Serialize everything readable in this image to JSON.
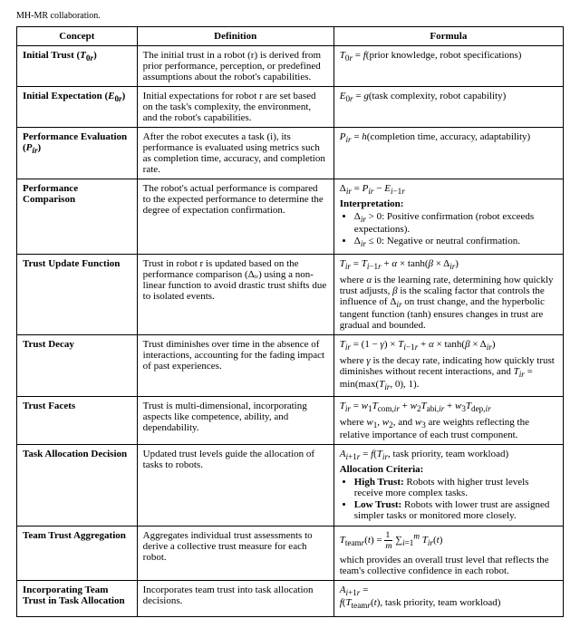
{
  "caption_fragment": "MH-MR collaboration.",
  "headers": [
    "Concept",
    "Definition",
    "Formula"
  ],
  "rows": [
    {
      "concept_html": "Initial Trust (<span class='italic'>T</span><sub>0<span class='italic'>r</span></sub>)",
      "definition": "The initial trust in a robot (r) is derived from prior performance, perception, or predefined assumptions about the robot's capabilities.",
      "formula_first_html": "<span class='italic'>T</span><sub>0<span class='italic'>r</span></sub> = <span class='italic'>f</span>(prior knowledge, robot specifications)"
    },
    {
      "concept_html": "Initial Expectation (<span class='italic'>E</span><sub>0<span class='italic'>r</span></sub>)",
      "definition": "Initial expectations for robot r are set based on the task's complexity, the environment, and the robot's capabilities.",
      "formula_first_html": "<span class='italic'>E</span><sub>0<span class='italic'>r</span></sub> = <span class='italic'>g</span>(task complexity, robot capability)"
    },
    {
      "concept_html": "Performance Evaluation (<span class='italic'>P</span><sub><span class='italic'>ir</span></sub>)",
      "definition": "After the robot executes a task (i), its performance is evaluated using metrics such as completion time, accuracy, and completion rate.",
      "formula_first_html": "<span class='italic'>P</span><sub><span class='italic'>ir</span></sub> = <span class='italic'>h</span>(completion time, accuracy, adaptability)"
    },
    {
      "concept_html": "Performance Comparison",
      "definition": "The robot's actual performance is compared to the expected performance to determine the degree of expectation confirmation.",
      "formula_first_html": "Δ<sub><span class='italic'>ir</span></sub> = <span class='italic'>P</span><sub><span class='italic'>ir</span></sub> − <span class='italic'>E</span><sub><span class='italic'>i</span>−1<span class='italic'>r</span></sub>",
      "interp_label": "Interpretation:",
      "bullets_html": [
        "Δ<sub><span class='italic'>ir</span></sub> > 0: Positive confirmation (robot exceeds expectations).",
        "Δ<sub><span class='italic'>ir</span></sub> ≤ 0: Negative or neutral confirmation."
      ]
    },
    {
      "concept_html": "Trust Update Function",
      "definition": "Trust in robot r is updated based on the performance comparison (Δᵢᵣ) using a non-linear function to avoid drastic trust shifts due to isolated events.",
      "formula_first_html": "<span class='italic'>T</span><sub><span class='italic'>ir</span></sub> = <span class='italic'>T</span><sub><span class='italic'>i</span>−1<span class='italic'>r</span></sub> + <span class='italic'>α</span> × tanh(<span class='italic'>β</span> × Δ<sub><span class='italic'>ir</span></sub>)",
      "where_html": "where <span class='italic'>α</span> is the learning rate, determining how quickly trust adjusts, <span class='italic'>β</span> is the scaling factor that controls the influence of Δ<sub><span class='italic'>ir</span></sub> on trust change, and the hyperbolic tangent function (tanh) ensures changes in trust are gradual and bounded."
    },
    {
      "concept_html": "Trust Decay",
      "definition": "Trust diminishes over time in the absence of interactions, accounting for the fading impact of past experiences.",
      "formula_first_html": "<span class='italic'>T</span><sub><span class='italic'>ir</span></sub> = (1 − <span class='italic'>γ</span>) × <span class='italic'>T</span><sub><span class='italic'>i</span>−1<span class='italic'>r</span></sub> + <span class='italic'>α</span> × tanh(<span class='italic'>β</span> × Δ<sub><span class='italic'>ir</span></sub>)",
      "where_html": "where <span class='italic'>γ</span> is the decay rate, indicating how quickly trust diminishes without recent interactions, and <span class='italic'>T</span><sub><span class='italic'>ir</span></sub> = min(max(<span class='italic'>T</span><sub><span class='italic'>ir</span></sub>, 0), 1)."
    },
    {
      "concept_html": "Trust Facets",
      "definition": "Trust is multi-dimensional, incorporating aspects like competence, ability, and dependability.",
      "formula_first_html": "<span class='italic'>T</span><sub><span class='italic'>ir</span></sub> = <span class='italic'>w</span><sub>1</sub><span class='italic'>T</span><sub>com,<span class='italic'>ir</span></sub> + <span class='italic'>w</span><sub>2</sub><span class='italic'>T</span><sub>abi,<span class='italic'>ir</span></sub> + <span class='italic'>w</span><sub>3</sub><span class='italic'>T</span><sub>dep,<span class='italic'>ir</span></sub>",
      "where_html": "where <span class='italic'>w</span><sub>1</sub>, <span class='italic'>w</span><sub>2</sub>, and <span class='italic'>w</span><sub>3</sub> are weights reflecting the relative importance of each trust component."
    },
    {
      "concept_html": "Task Allocation Decision",
      "definition": "Updated trust levels guide the allocation of tasks to robots.",
      "formula_first_html": "<span class='italic'>A</span><sub><span class='italic'>i</span>+1<span class='italic'>r</span></sub> = <span class='italic'>f</span>(<span class='italic'>T</span><sub><span class='italic'>ir</span></sub>, task priority, team workload)",
      "interp_label": "Allocation Criteria:",
      "bullets_html": [
        "<b>High Trust:</b> Robots with higher trust levels receive more complex tasks.",
        "<b>Low Trust:</b> Robots with lower trust are assigned simpler tasks or monitored more closely."
      ]
    },
    {
      "concept_html": "Team Trust Aggregation",
      "definition": "Aggregates individual trust assessments to derive a collective trust measure for each robot.",
      "formula_first_html": "<span class='italic'>T</span><sub>team<span class='italic'>r</span></sub>(<span class='italic'>t</span>) = <span style='display:inline-block;vertical-align:middle;font-size:0.9em;'><span style='display:block;border-bottom:0.5px solid #000;padding:0 1px;'>1</span><span style='display:block;padding:0 1px;'><span class='italic'>m</span></span></span> ∑<sub><span class='italic'>i</span>=1</sub><sup><span class='italic'>m</span></sup> <span class='italic'>T</span><sub><span class='italic'>ir</span></sub>(<span class='italic'>t</span>)",
      "where_html": "which provides an overall trust level that reflects the team's collective confidence in each robot."
    },
    {
      "concept_html": "Incorporating Team Trust in Task Allocation",
      "definition": "Incorporates team trust into task allocation decisions.",
      "formula_first_html": "<span class='italic'>A</span><sub><span class='italic'>i</span>+1<span class='italic'>r</span></sub> =<br><span class='italic'>f</span>(<span class='italic'>T</span><sub>team<span class='italic'>r</span></sub>(<span class='italic'>t</span>), task priority, team workload)"
    }
  ]
}
